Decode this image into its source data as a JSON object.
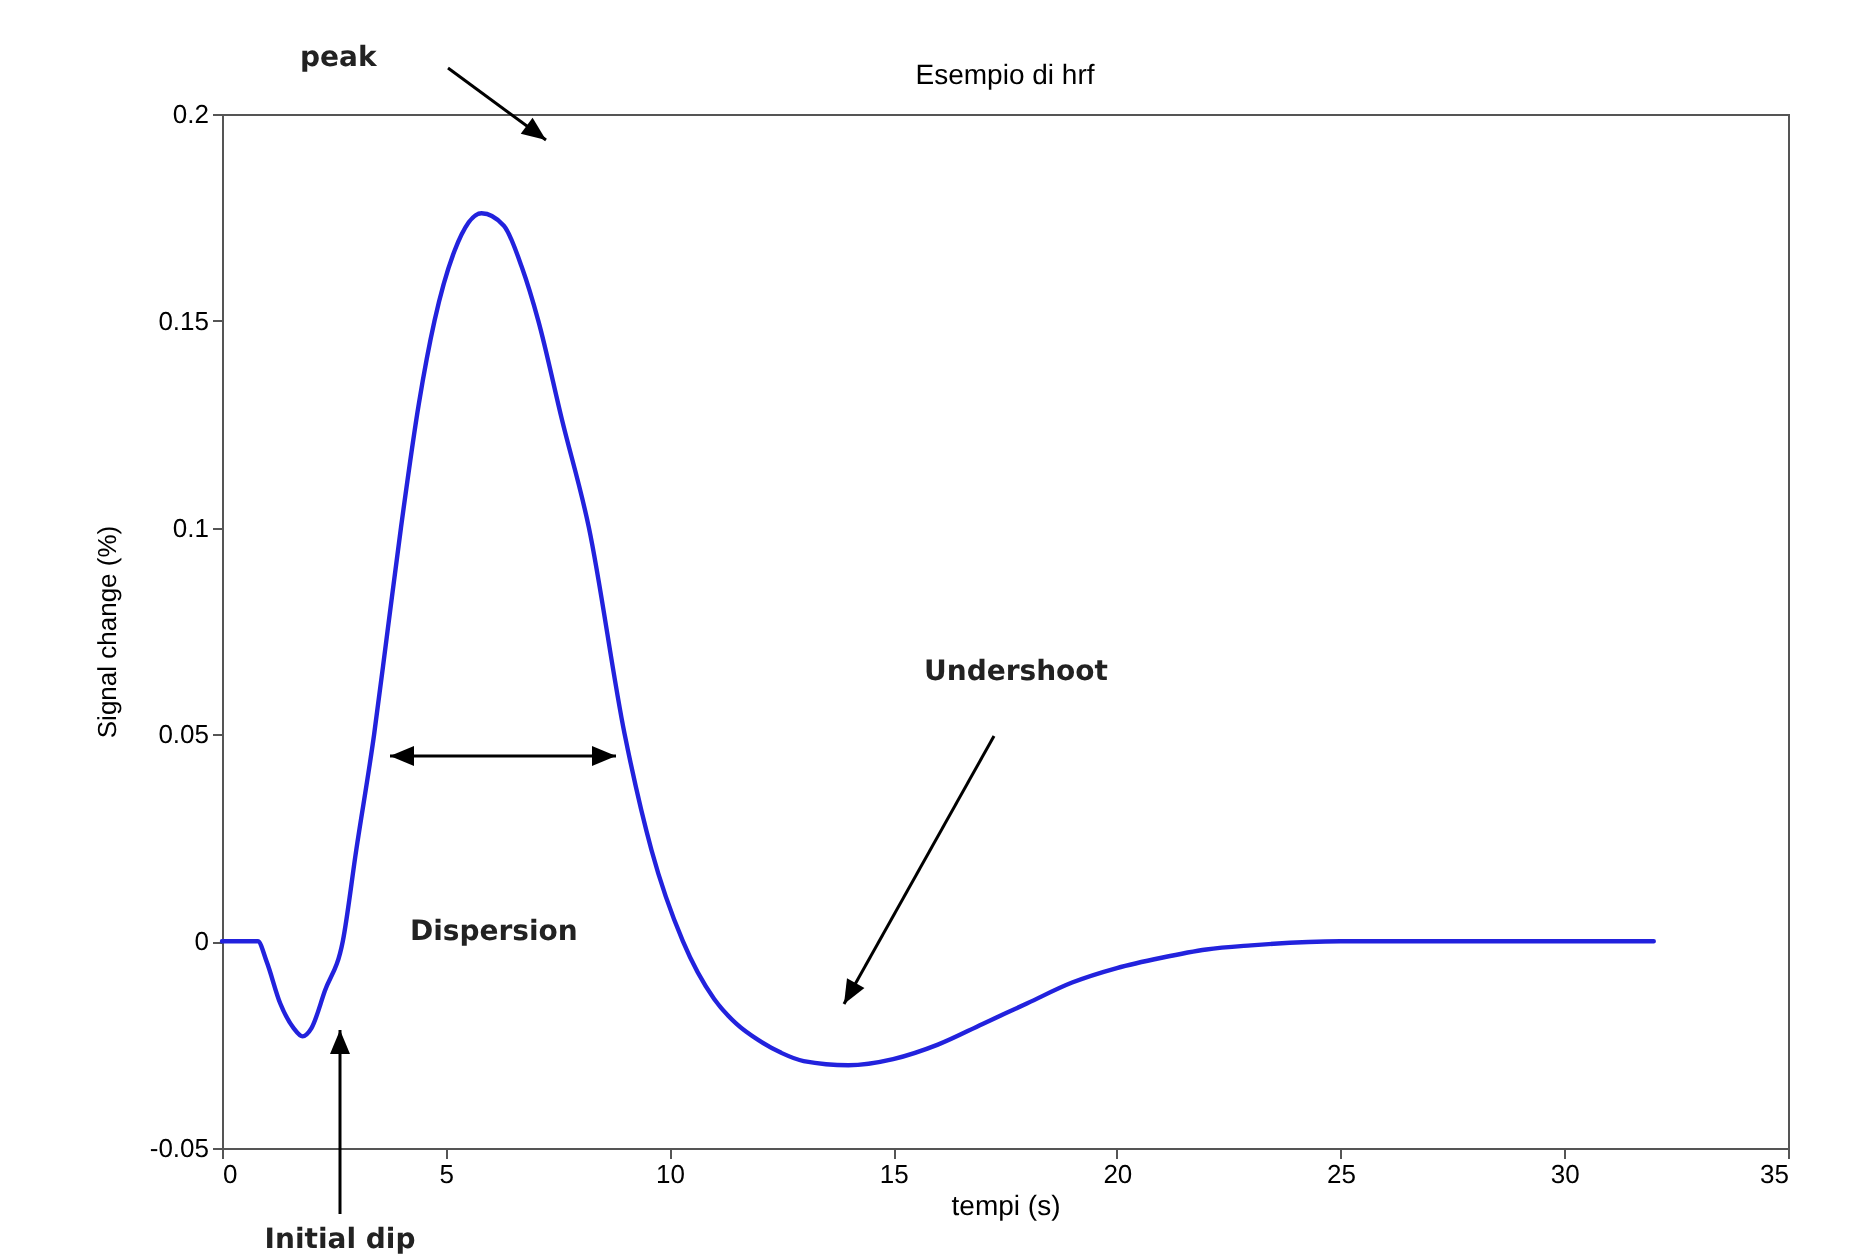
{
  "chart_data": {
    "type": "line",
    "title": "Esempio di hrf",
    "xlabel": "tempi (s)",
    "ylabel": "Signal change (%)",
    "x": [
      0,
      0.8,
      1.0,
      1.3,
      1.6,
      1.8,
      2.0,
      2.3,
      2.7,
      3.0,
      3.4,
      3.7,
      4.0,
      4.4,
      4.75,
      5.2,
      5.8,
      6.3,
      6.7,
      7.07,
      7.6,
      8.2,
      9.0,
      9.6,
      10.3,
      11.0,
      11.5,
      12.0,
      12.5,
      13.0,
      14.0,
      15.0,
      16.0,
      17.0,
      18.0,
      19.0,
      20.0,
      21.0,
      22.0,
      23.0,
      25.0,
      32.0
    ],
    "series": [
      {
        "color": "#2222dd",
        "values": [
          0,
          0,
          -0.005,
          -0.015,
          -0.021,
          -0.023,
          -0.021,
          -0.012,
          0,
          0.022,
          0.05,
          0.075,
          0.1,
          0.13,
          0.15,
          0.167,
          0.176,
          0.173,
          0.163,
          0.15,
          0.126,
          0.1,
          0.05,
          0.022,
          0,
          -0.014,
          -0.02,
          -0.024,
          -0.027,
          -0.029,
          -0.03,
          -0.0285,
          -0.025,
          -0.02,
          -0.015,
          -0.01,
          -0.0065,
          -0.004,
          -0.002,
          -0.001,
          0,
          0
        ]
      }
    ],
    "xlim": [
      0,
      35
    ],
    "xticks": [
      0,
      5,
      10,
      15,
      20,
      25,
      30,
      35
    ],
    "ylim": [
      -0.05,
      0.2
    ],
    "yticks": [
      -0.05,
      0,
      0.05,
      0.1,
      0.15,
      0.2
    ],
    "grid": false,
    "marker": "none",
    "line_style": "solid",
    "annotations": [
      "peak",
      "Initial dip",
      "Dispersion",
      "Undershoot"
    ]
  }
}
